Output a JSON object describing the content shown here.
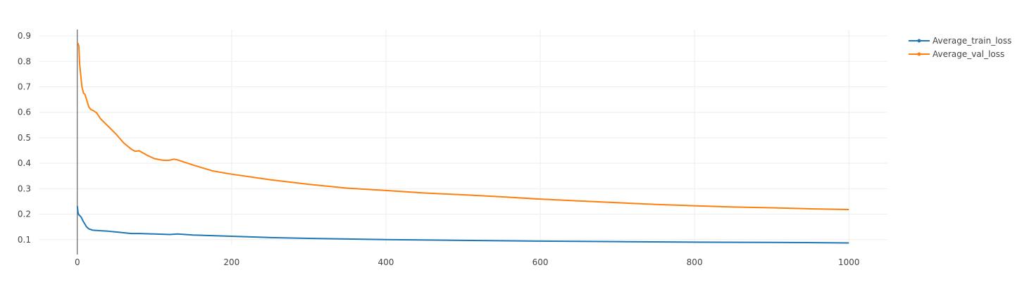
{
  "chart_data": {
    "type": "line",
    "title": "",
    "xlabel": "",
    "ylabel": "",
    "xlim": [
      -50,
      1050
    ],
    "ylim": [
      0.08,
      0.925
    ],
    "x_ticks": [
      0,
      200,
      400,
      600,
      800,
      1000
    ],
    "y_ticks": [
      0.1,
      0.2,
      0.3,
      0.4,
      0.5,
      0.6,
      0.7,
      0.8,
      0.9
    ],
    "x_tick_labels": [
      "0",
      "200",
      "400",
      "600",
      "800",
      "1000"
    ],
    "y_tick_labels": [
      "0.1",
      "0.2",
      "0.3",
      "0.4",
      "0.5",
      "0.6",
      "0.7",
      "0.8",
      "0.9"
    ],
    "grid": true,
    "legend_position": "top-right",
    "series": [
      {
        "name": "Average_train_loss",
        "color": "#1f77b4",
        "x": [
          0,
          1,
          2,
          3,
          5,
          8,
          10,
          12,
          15,
          20,
          30,
          40,
          50,
          60,
          70,
          80,
          100,
          110,
          120,
          130,
          150,
          200,
          250,
          300,
          400,
          500,
          600,
          700,
          800,
          900,
          1000
        ],
        "y": [
          0.232,
          0.205,
          0.197,
          0.195,
          0.188,
          0.17,
          0.16,
          0.15,
          0.142,
          0.137,
          0.135,
          0.133,
          0.13,
          0.127,
          0.124,
          0.124,
          0.122,
          0.121,
          0.12,
          0.122,
          0.118,
          0.113,
          0.108,
          0.105,
          0.1,
          0.097,
          0.094,
          0.092,
          0.09,
          0.089,
          0.087
        ]
      },
      {
        "name": "Average_val_loss",
        "color": "#ff7f0e",
        "x": [
          0,
          1,
          2,
          3,
          4,
          5,
          6,
          8,
          10,
          12,
          15,
          18,
          20,
          25,
          30,
          35,
          40,
          50,
          60,
          70,
          75,
          80,
          90,
          100,
          110,
          115,
          120,
          125,
          130,
          140,
          150,
          175,
          200,
          250,
          300,
          350,
          400,
          450,
          500,
          550,
          600,
          650,
          700,
          750,
          800,
          850,
          900,
          950,
          1000
        ],
        "y": [
          0.868,
          0.87,
          0.86,
          0.79,
          0.76,
          0.73,
          0.7,
          0.675,
          0.67,
          0.65,
          0.62,
          0.61,
          0.608,
          0.598,
          0.575,
          0.56,
          0.545,
          0.515,
          0.48,
          0.455,
          0.447,
          0.449,
          0.432,
          0.418,
          0.412,
          0.411,
          0.412,
          0.416,
          0.413,
          0.403,
          0.393,
          0.37,
          0.357,
          0.335,
          0.317,
          0.302,
          0.293,
          0.283,
          0.276,
          0.268,
          0.259,
          0.252,
          0.245,
          0.238,
          0.233,
          0.228,
          0.225,
          0.221,
          0.218
        ]
      }
    ]
  }
}
